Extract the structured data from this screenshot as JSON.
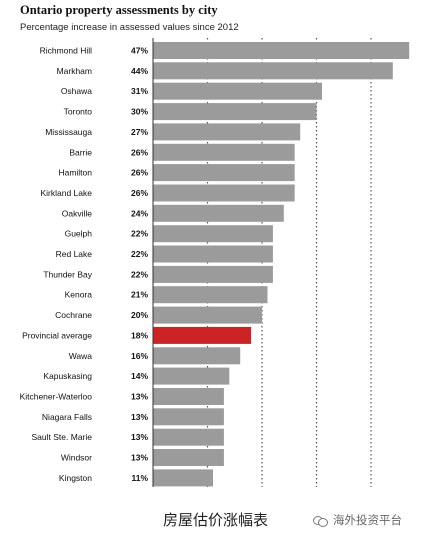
{
  "header": {
    "title": "Ontario property assessments by city",
    "subtitle": "Percentage increase in assessed values since 2012"
  },
  "footer": {
    "caption": "房屋估价涨幅表",
    "watermark_text": "海外投资平台",
    "watermark_icon": "wechat-icon"
  },
  "colors": {
    "bar": "#9b9b9b",
    "highlight": "#cc2424",
    "gridline": "#555555"
  },
  "chart_data": {
    "type": "bar",
    "orientation": "horizontal",
    "title": "Ontario property assessments by city",
    "subtitle": "Percentage increase in assessed values since 2012",
    "categories": [
      "Richmond Hill",
      "Markham",
      "Oshawa",
      "Toronto",
      "Mississauga",
      "Barrie",
      "Hamilton",
      "Kirkland Lake",
      "Oakville",
      "Guelph",
      "Red Lake",
      "Thunder Bay",
      "Kenora",
      "Cochrane",
      "Provincial average",
      "Wawa",
      "Kapuskasing",
      "Kitchener-Waterloo",
      "Niagara Falls",
      "Sault Ste. Marie",
      "Windsor",
      "Kingston"
    ],
    "values": [
      47,
      44,
      31,
      30,
      27,
      26,
      26,
      26,
      24,
      22,
      22,
      22,
      21,
      20,
      18,
      16,
      14,
      13,
      13,
      13,
      13,
      11
    ],
    "value_labels": [
      "47%",
      "44%",
      "31%",
      "30%",
      "27%",
      "26%",
      "26%",
      "26%",
      "24%",
      "22%",
      "22%",
      "22%",
      "21%",
      "20%",
      "18%",
      "16%",
      "14%",
      "13%",
      "13%",
      "13%",
      "13%",
      "11%"
    ],
    "highlight": "Provincial average",
    "xlim": [
      0,
      48
    ],
    "gridlines": [
      10,
      20,
      30,
      40
    ],
    "grid_style": "dotted"
  }
}
